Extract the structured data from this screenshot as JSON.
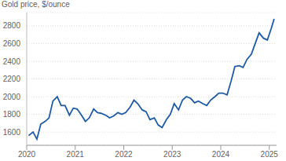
{
  "chart_data": {
    "type": "line",
    "title": "Gold price, $/ounce",
    "x": [
      2020.04,
      2020.13,
      2020.21,
      2020.29,
      2020.38,
      2020.46,
      2020.54,
      2020.63,
      2020.71,
      2020.79,
      2020.88,
      2020.96,
      2021.04,
      2021.13,
      2021.21,
      2021.29,
      2021.38,
      2021.46,
      2021.54,
      2021.63,
      2021.71,
      2021.79,
      2021.88,
      2021.96,
      2022.04,
      2022.13,
      2022.21,
      2022.29,
      2022.38,
      2022.46,
      2022.54,
      2022.63,
      2022.71,
      2022.79,
      2022.88,
      2022.96,
      2023.04,
      2023.13,
      2023.21,
      2023.29,
      2023.38,
      2023.46,
      2023.54,
      2023.63,
      2023.71,
      2023.79,
      2023.88,
      2023.96,
      2024.04,
      2024.13,
      2024.21,
      2024.29,
      2024.38,
      2024.46,
      2024.54,
      2024.63,
      2024.71,
      2024.79,
      2024.88,
      2024.96,
      2025.04,
      2025.1
    ],
    "values": [
      1560,
      1600,
      1520,
      1690,
      1720,
      1760,
      1950,
      2000,
      1900,
      1900,
      1790,
      1870,
      1860,
      1790,
      1720,
      1760,
      1860,
      1820,
      1810,
      1790,
      1760,
      1780,
      1820,
      1800,
      1820,
      1880,
      1960,
      1920,
      1850,
      1830,
      1740,
      1760,
      1680,
      1650,
      1740,
      1800,
      1920,
      1850,
      1960,
      2000,
      1980,
      1930,
      1950,
      1920,
      1900,
      1960,
      2000,
      2040,
      2040,
      2020,
      2170,
      2340,
      2350,
      2330,
      2420,
      2480,
      2600,
      2720,
      2660,
      2640,
      2770,
      2880
    ],
    "color": "#1d5aa6",
    "xlim": [
      2020,
      2025.15
    ],
    "xticks": [
      2020,
      2021,
      2022,
      2023,
      2024,
      2025
    ],
    "ylim": [
      1450,
      2950
    ],
    "yticks": [
      1600,
      1800,
      2000,
      2200,
      2400,
      2600,
      2800
    ],
    "grid": true
  }
}
